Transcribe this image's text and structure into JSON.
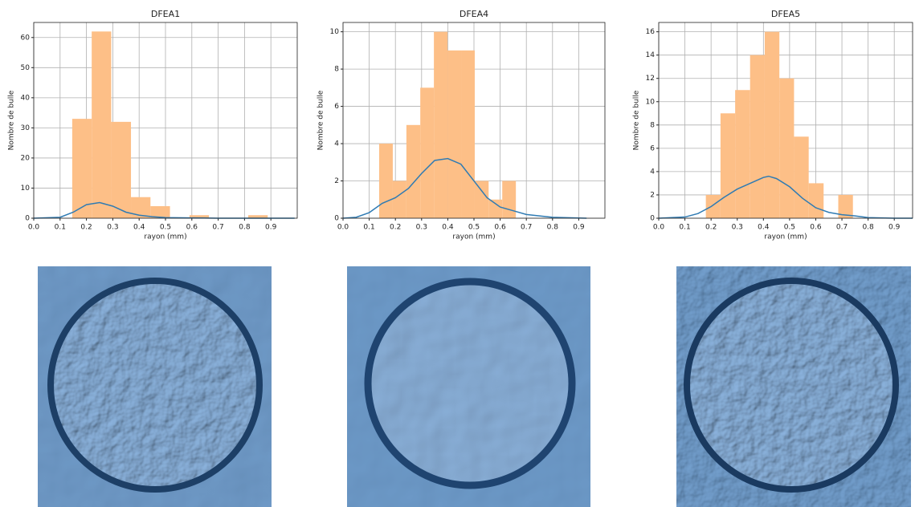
{
  "chart_data": [
    {
      "type": "histogram",
      "title": "DFEA1",
      "xlabel": "rayon (mm)",
      "ylabel": "Nombre de bulle",
      "bins": [
        0.146,
        0.22,
        0.294,
        0.369,
        0.443,
        0.517,
        0.591,
        0.665,
        0.74,
        0.814,
        0.888
      ],
      "values": [
        33,
        62,
        32,
        7,
        4,
        0,
        1,
        0,
        0,
        1
      ],
      "color": "#fdbf87",
      "line": {
        "x": [
          0,
          0.1,
          0.15,
          0.2,
          0.25,
          0.3,
          0.35,
          0.4,
          0.45,
          0.5,
          0.6,
          0.7,
          0.99
        ],
        "y": [
          0,
          0.3,
          2,
          4.5,
          5.2,
          4,
          2,
          1,
          0.5,
          0.2,
          0.1,
          0,
          0
        ],
        "color": "#2f7bb3"
      },
      "xlim": [
        0,
        1.0
      ],
      "ylim": [
        0,
        65
      ],
      "xticks": [
        {
          "value": 0,
          "label": "0.0"
        },
        0.1,
        0.2,
        0.3,
        0.4,
        0.5,
        0.6,
        0.7,
        0.8,
        0.9
      ],
      "yticks": [
        0,
        10,
        20,
        30,
        40,
        50,
        60
      ],
      "grid": true
    },
    {
      "type": "histogram",
      "title": "DFEA4",
      "xlabel": "rayon (mm)",
      "ylabel": "Nombre de bulle",
      "bins": [
        0.138,
        0.19,
        0.242,
        0.295,
        0.347,
        0.399,
        0.451,
        0.503,
        0.556,
        0.608,
        0.66
      ],
      "values": [
        4,
        2,
        5,
        7,
        10,
        9,
        9,
        2,
        1,
        2
      ],
      "color": "#fdbf87",
      "line": {
        "x": [
          0,
          0.05,
          0.1,
          0.15,
          0.2,
          0.25,
          0.3,
          0.35,
          0.4,
          0.45,
          0.5,
          0.55,
          0.6,
          0.65,
          0.7,
          0.8,
          0.93
        ],
        "y": [
          0,
          0.05,
          0.3,
          0.8,
          1.1,
          1.6,
          2.4,
          3.1,
          3.2,
          2.9,
          2.0,
          1.1,
          0.6,
          0.4,
          0.2,
          0.05,
          0
        ],
        "color": "#2f7bb3"
      },
      "xlim": [
        0,
        1.0
      ],
      "ylim": [
        0,
        10.5
      ],
      "xticks": [
        {
          "value": 0,
          "label": "0.0"
        },
        0.1,
        0.2,
        0.3,
        0.4,
        0.5,
        0.6,
        0.7,
        0.8,
        0.9
      ],
      "yticks": [
        0,
        2,
        4,
        6,
        8,
        10
      ],
      "grid": true
    },
    {
      "type": "histogram",
      "title": "DFEA5",
      "xlabel": "rayon (mm)",
      "ylabel": "Nombre de bulle",
      "bins": [
        0.18,
        0.236,
        0.292,
        0.349,
        0.405,
        0.461,
        0.517,
        0.573,
        0.63,
        0.686,
        0.742
      ],
      "values": [
        2,
        9,
        11,
        14,
        16,
        12,
        7,
        3,
        0,
        2
      ],
      "color": "#fdbf87",
      "line": {
        "x": [
          0,
          0.1,
          0.15,
          0.2,
          0.25,
          0.3,
          0.35,
          0.4,
          0.42,
          0.45,
          0.5,
          0.55,
          0.6,
          0.65,
          0.7,
          0.75,
          0.8,
          0.9,
          0.97
        ],
        "y": [
          0,
          0.1,
          0.4,
          1,
          1.8,
          2.5,
          3,
          3.5,
          3.6,
          3.4,
          2.7,
          1.7,
          0.9,
          0.5,
          0.3,
          0.2,
          0.05,
          0,
          0
        ],
        "color": "#2f7bb3"
      },
      "xlim": [
        0,
        0.97
      ],
      "ylim": [
        0,
        16.8
      ],
      "xticks": [
        {
          "value": 0,
          "label": "0.0"
        },
        0.1,
        0.2,
        0.3,
        0.4,
        0.5,
        0.6,
        0.7,
        0.8,
        0.9
      ],
      "yticks": [
        0,
        2,
        4,
        6,
        8,
        10,
        12,
        14,
        16
      ],
      "grid": true
    }
  ]
}
